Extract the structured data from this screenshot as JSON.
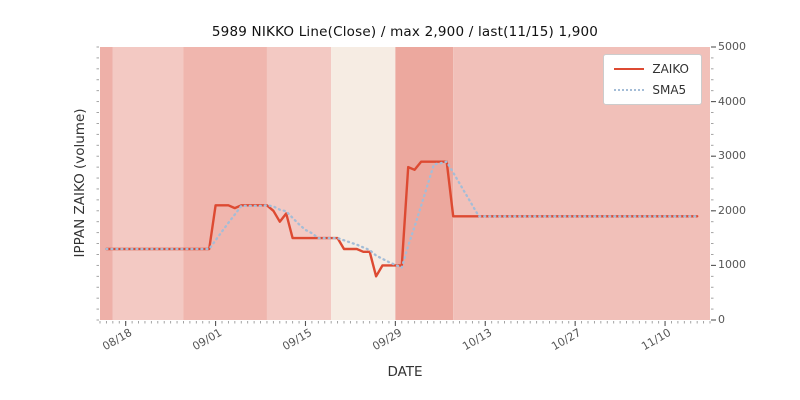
{
  "title": "5989 NIKKO Line(Close) / max 2,900 / last(11/15) 1,900",
  "x_label": "DATE",
  "y_label": "IPPAN ZAIKO (volume)",
  "legend": {
    "items": [
      {
        "label": "ZAIKO",
        "style": "solid",
        "color": "#dd4a32"
      },
      {
        "label": "SMA5",
        "style": "dotted",
        "color": "#a4bdd7"
      }
    ]
  },
  "colors": {
    "zaiko_line": "#dd4a32",
    "sma5_line": "#a4bdd7",
    "tick": "#888888",
    "tick_label": "#555555"
  },
  "chart_data": {
    "type": "line",
    "title": "5989 NIKKO Line(Close) / max 2,900 / last(11/15) 1,900",
    "xlabel": "DATE",
    "ylabel": "IPPAN ZAIKO (volume)",
    "x_domain": [
      "08/14",
      "11/17"
    ],
    "x_ticks": [
      "08/18",
      "09/01",
      "09/15",
      "09/29",
      "10/13",
      "10/27",
      "11/10"
    ],
    "y_ticks": [
      0,
      1000,
      2000,
      3000,
      4000,
      5000
    ],
    "ylim": [
      0,
      5000
    ],
    "grid": false,
    "legend_position": "upper right",
    "series": [
      {
        "name": "ZAIKO",
        "style": "solid",
        "color": "#dd4a32",
        "interpolation": "daily forward-fill between breakpoints",
        "breakpoints": [
          [
            "08/15",
            1300
          ],
          [
            "09/01",
            2100
          ],
          [
            "09/04",
            2050
          ],
          [
            "09/05",
            2100
          ],
          [
            "09/10",
            2000
          ],
          [
            "09/11",
            1800
          ],
          [
            "09/12",
            1950
          ],
          [
            "09/13",
            1500
          ],
          [
            "09/21",
            1300
          ],
          [
            "09/24",
            1250
          ],
          [
            "09/26",
            800
          ],
          [
            "09/27",
            1000
          ],
          [
            "10/01",
            2800
          ],
          [
            "10/02",
            2750
          ],
          [
            "10/03",
            2900
          ],
          [
            "10/08",
            1900
          ],
          [
            "11/15",
            1900
          ]
        ],
        "max": 2900,
        "last_date": "11/15",
        "last_value": 1900
      },
      {
        "name": "SMA5",
        "style": "dotted",
        "color": "#a4bdd7",
        "derived": "5-day simple moving average of ZAIKO",
        "window": 5
      }
    ],
    "background_bands": [
      {
        "from": "08/14",
        "to": "08/16",
        "color": "#eeb0a8"
      },
      {
        "from": "08/16",
        "to": "08/27",
        "color": "#f3c9c3"
      },
      {
        "from": "08/27",
        "to": "09/09",
        "color": "#f0b6ae"
      },
      {
        "from": "09/09",
        "to": "09/19",
        "color": "#f3c9c3"
      },
      {
        "from": "09/19",
        "to": "09/29",
        "color": "#f6ece3"
      },
      {
        "from": "09/29",
        "to": "10/08",
        "color": "#eca89e"
      },
      {
        "from": "10/08",
        "to": "11/17",
        "color": "#f1c0b9"
      }
    ]
  }
}
